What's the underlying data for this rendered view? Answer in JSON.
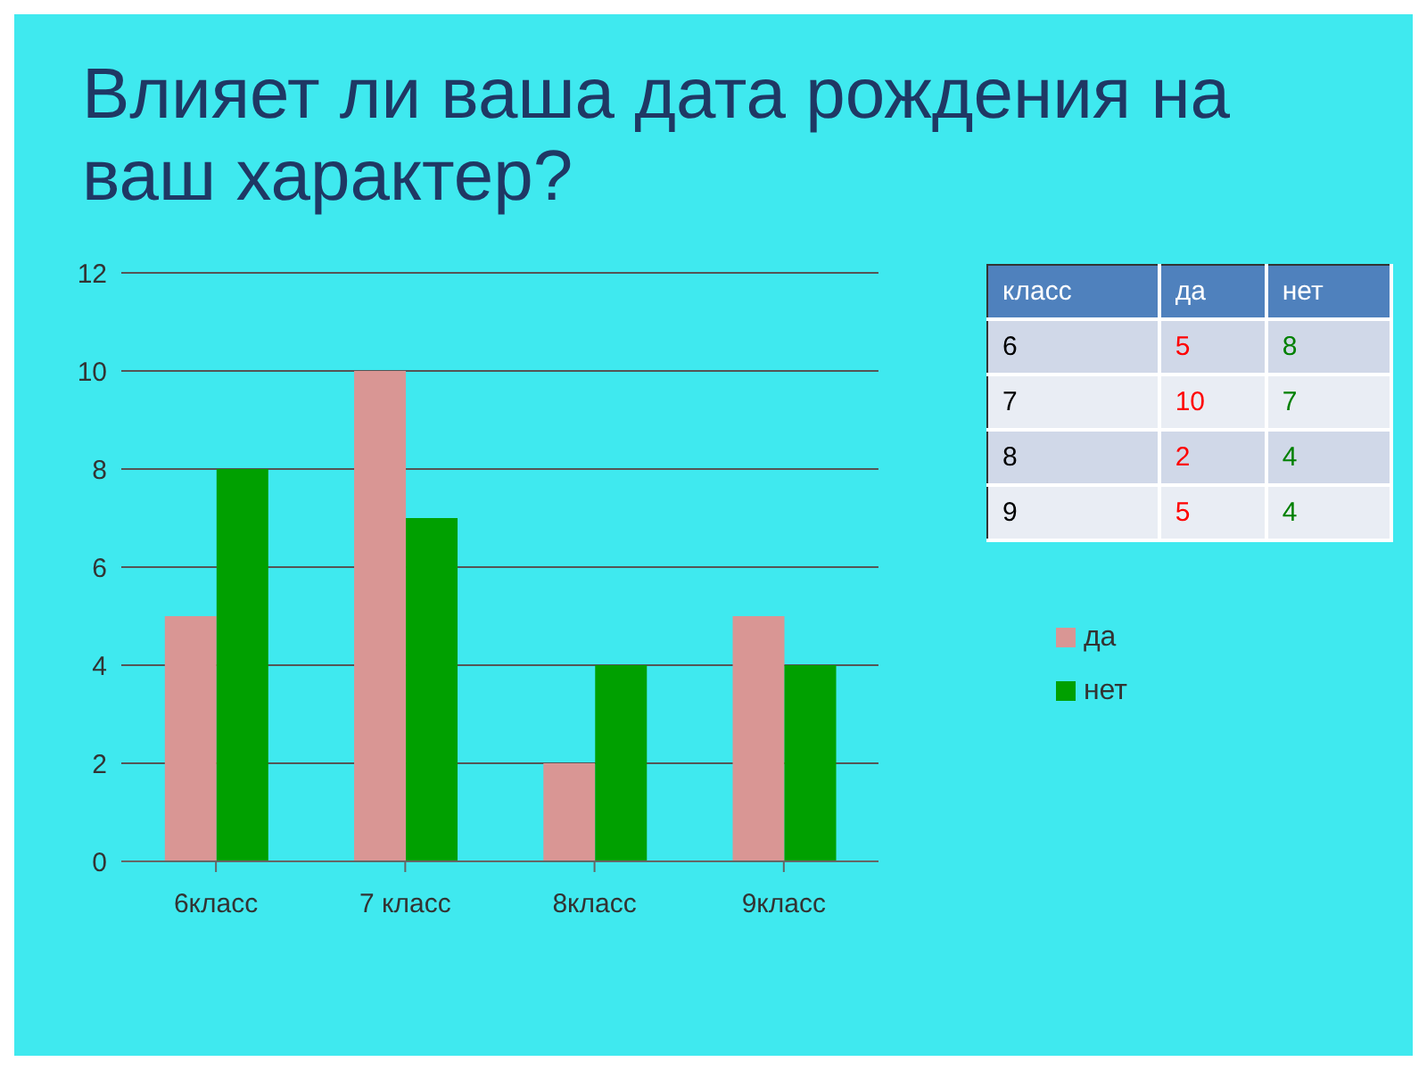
{
  "chart_data": {
    "type": "bar",
    "title": "Влияет ли ваша дата рождения на ваш характер?",
    "categories": [
      "6класс",
      "7 класс",
      "8класс",
      "9класс"
    ],
    "series": [
      {
        "name": "да",
        "color": "#d99694",
        "values": [
          5,
          10,
          2,
          5
        ]
      },
      {
        "name": "нет",
        "color": "#00a000",
        "values": [
          8,
          7,
          4,
          4
        ]
      }
    ],
    "ylim": [
      0,
      12
    ],
    "yticks": [
      0,
      2,
      4,
      6,
      8,
      10,
      12
    ],
    "grid": "y",
    "legend": "right",
    "annotations": [
      "класс",
      "6",
      "5",
      "8",
      "7",
      "10",
      "7",
      "8",
      "2",
      "4",
      "9",
      "5",
      "4"
    ]
  }
}
